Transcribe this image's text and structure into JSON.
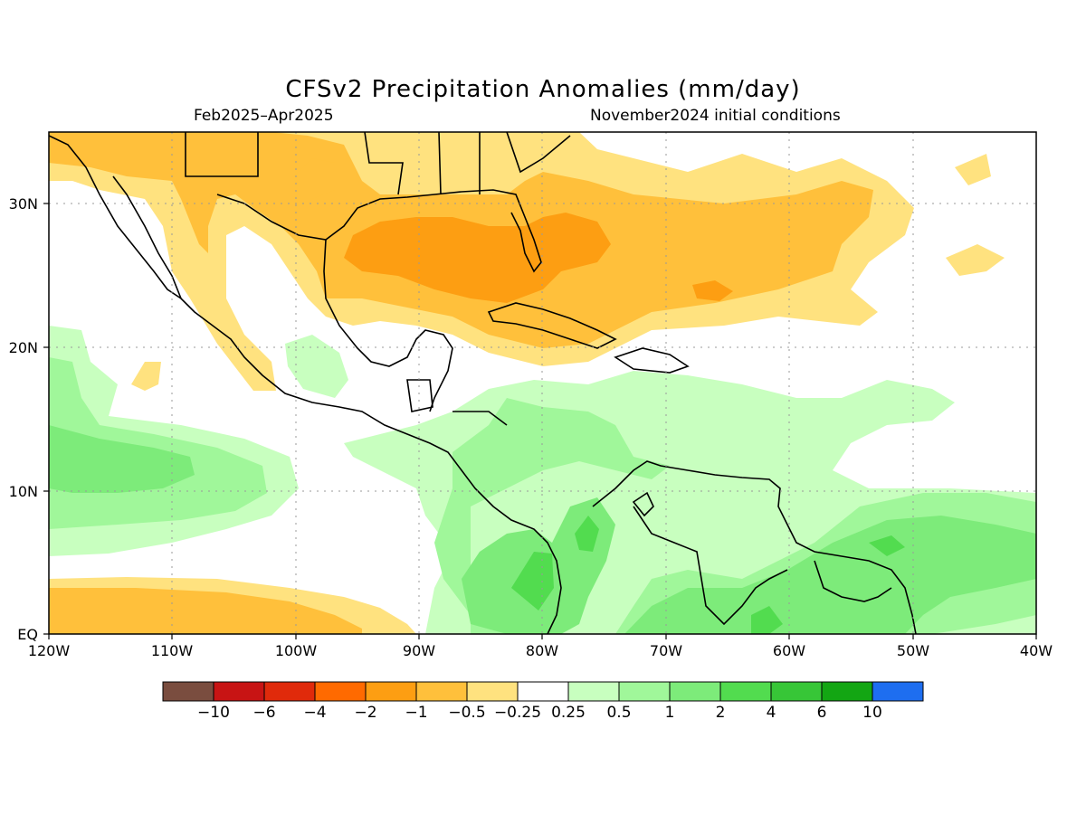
{
  "title": "CFSv2 Precipitation Anomalies (mm/day)",
  "period": "Feb2025–Apr2025",
  "init": "November2024 initial conditions",
  "lat_ticks": [
    "30N",
    "20N",
    "10N",
    "EQ"
  ],
  "lon_ticks": [
    "120W",
    "110W",
    "100W",
    "90W",
    "80W",
    "70W",
    "60W",
    "50W",
    "40W"
  ],
  "colorbar": {
    "colors": [
      "#7a4d3f",
      "#c81414",
      "#e02a0b",
      "#ff6a00",
      "#fd9e12",
      "#ffc03b",
      "#ffe27f",
      "#ffffff",
      "#c8ffbf",
      "#a0f79a",
      "#7deb7a",
      "#52dc4f",
      "#37c637",
      "#13a613",
      "#1e6ef0"
    ],
    "labels": [
      "−10",
      "−6",
      "−4",
      "−2",
      "−1",
      "−0.5",
      "−0.25",
      "0.25",
      "0.5",
      "1",
      "2",
      "4",
      "6",
      "10"
    ]
  }
}
